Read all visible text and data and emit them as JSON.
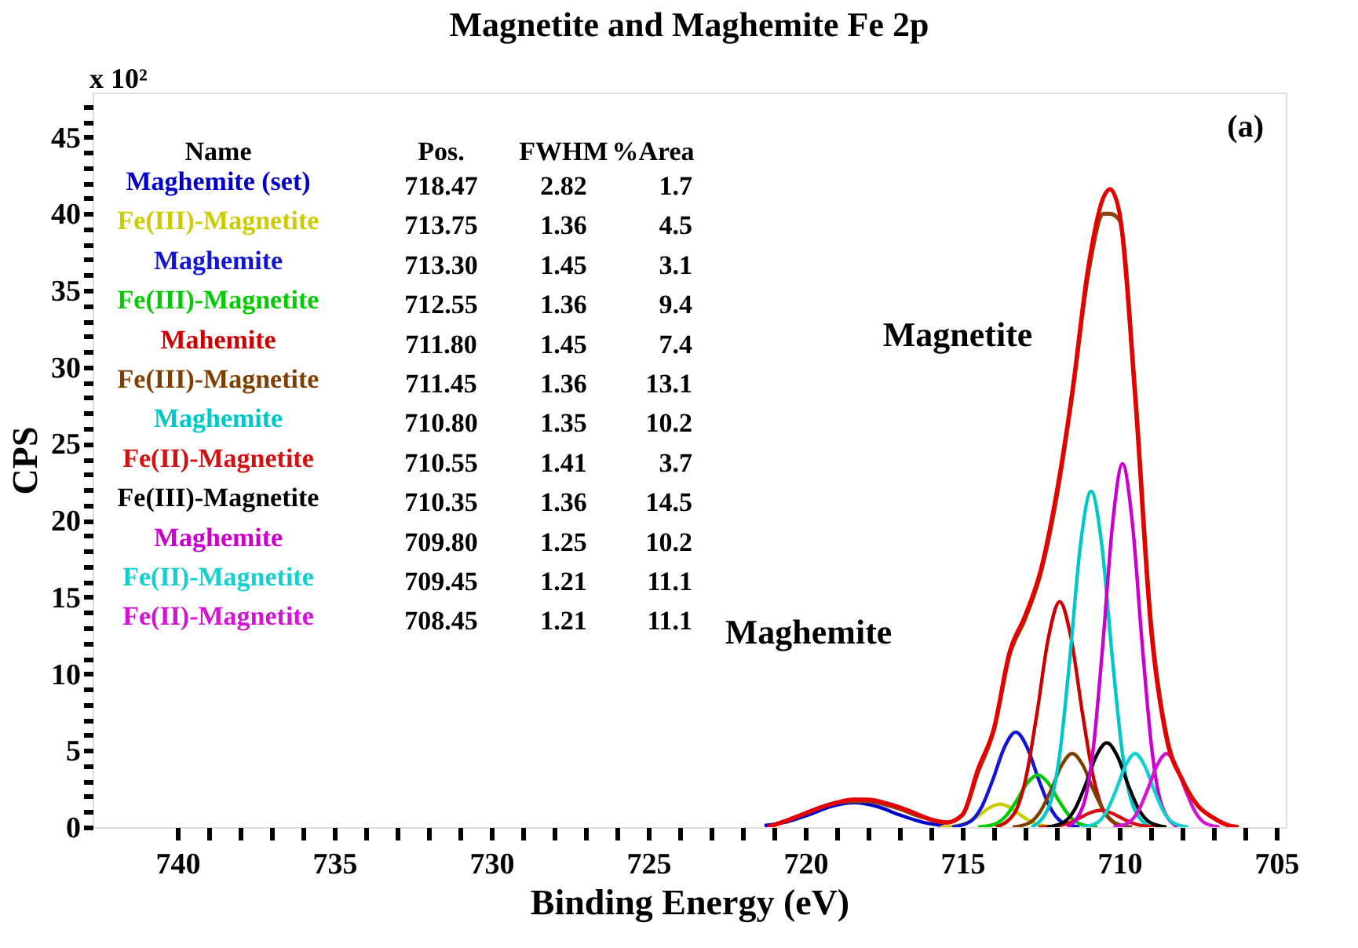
{
  "chart_data": {
    "type": "line",
    "title": "Magnetite and Maghemite  Fe 2p",
    "xlabel": "Binding Energy (eV)",
    "ylabel": "CPS",
    "xlim": [
      742.7,
      704.7
    ],
    "ylim": [
      0,
      47.9
    ],
    "xticks": [
      740,
      {
        "value": 739,
        "label": null
      },
      {
        "value": 738,
        "label": null
      },
      {
        "value": 737,
        "label": null
      },
      {
        "value": 736,
        "label": null
      },
      735,
      {
        "value": 734,
        "label": null
      },
      {
        "value": 733,
        "label": null
      },
      {
        "value": 732,
        "label": null
      },
      {
        "value": 731,
        "label": null
      },
      730,
      {
        "value": 729,
        "label": null
      },
      {
        "value": 728,
        "label": null
      },
      {
        "value": 727,
        "label": null
      },
      {
        "value": 726,
        "label": null
      },
      725,
      {
        "value": 724,
        "label": null
      },
      {
        "value": 723,
        "label": null
      },
      {
        "value": 722,
        "label": null
      },
      {
        "value": 721,
        "label": null
      },
      720,
      {
        "value": 719,
        "label": null
      },
      {
        "value": 718,
        "label": null
      },
      {
        "value": 717,
        "label": null
      },
      {
        "value": 716,
        "label": null
      },
      715,
      {
        "value": 714,
        "label": null
      },
      {
        "value": 713,
        "label": null
      },
      {
        "value": 712,
        "label": null
      },
      {
        "value": 711,
        "label": null
      },
      710,
      {
        "value": 709,
        "label": null
      },
      {
        "value": 708,
        "label": null
      },
      {
        "value": 707,
        "label": null
      },
      {
        "value": 706,
        "label": null
      },
      705
    ],
    "yticks": [
      0,
      {
        "value": 1,
        "label": null
      },
      {
        "value": 2,
        "label": null
      },
      {
        "value": 3,
        "label": null
      },
      {
        "value": 4,
        "label": null
      },
      5,
      {
        "value": 6,
        "label": null
      },
      {
        "value": 7,
        "label": null
      },
      {
        "value": 8,
        "label": null
      },
      {
        "value": 9,
        "label": null
      },
      10,
      {
        "value": 11,
        "label": null
      },
      {
        "value": 12,
        "label": null
      },
      {
        "value": 13,
        "label": null
      },
      {
        "value": 14,
        "label": null
      },
      15,
      {
        "value": 16,
        "label": null
      },
      {
        "value": 17,
        "label": null
      },
      {
        "value": 18,
        "label": null
      },
      {
        "value": 19,
        "label": null
      },
      20,
      {
        "value": 21,
        "label": null
      },
      {
        "value": 22,
        "label": null
      },
      {
        "value": 23,
        "label": null
      },
      {
        "value": 24,
        "label": null
      },
      25,
      {
        "value": 26,
        "label": null
      },
      {
        "value": 27,
        "label": null
      },
      {
        "value": 28,
        "label": null
      },
      {
        "value": 29,
        "label": null
      },
      30,
      {
        "value": 31,
        "label": null
      },
      {
        "value": 32,
        "label": null
      },
      {
        "value": 33,
        "label": null
      },
      {
        "value": 34,
        "label": null
      },
      35,
      {
        "value": 36,
        "label": null
      },
      {
        "value": 37,
        "label": null
      },
      {
        "value": 38,
        "label": null
      },
      {
        "value": 39,
        "label": null
      },
      40,
      {
        "value": 41,
        "label": null
      },
      {
        "value": 42,
        "label": null
      },
      {
        "value": 43,
        "label": null
      },
      {
        "value": 44,
        "label": null
      },
      45,
      {
        "value": 46,
        "label": null
      },
      {
        "value": 47,
        "label": null
      }
    ],
    "grid": false,
    "marker": "none",
    "line_style": "solid",
    "series": [
      {
        "name": "Maghemite (set)",
        "color": "#0000cc",
        "x": [
          721.3,
          720.6,
          719.9,
          719.2,
          718.45,
          717.7,
          717.0,
          716.3,
          715.6
        ],
        "values": [
          0.1,
          0.34,
          0.8,
          1.34,
          1.6,
          1.34,
          0.8,
          0.34,
          0.1
        ]
      },
      {
        "name": "Fe(III)-Magnetite",
        "color": "#cccc00",
        "x": [
          715.7,
          715.16,
          714.82,
          714.48,
          714.14,
          713.8,
          713.46,
          713.12,
          712.78,
          712.44,
          711.9
        ],
        "values": [
          0,
          0.09,
          0.32,
          0.75,
          1.26,
          1.5,
          1.26,
          0.75,
          0.32,
          0.09,
          0
        ]
      },
      {
        "name": "Maghemite",
        "color": "#1414d4",
        "x": [
          715.33,
          714.75,
          714.39,
          714.03,
          713.66,
          713.3,
          712.94,
          712.57,
          712.21,
          711.85,
          711.27
        ],
        "values": [
          0,
          0.37,
          1.3,
          3.1,
          5.21,
          6.2,
          5.21,
          3.1,
          1.3,
          0.37,
          0
        ]
      },
      {
        "name": "Fe(III)-Magnetite",
        "color": "#00cc00",
        "x": [
          714.5,
          713.96,
          713.62,
          713.28,
          712.94,
          712.6,
          712.26,
          711.92,
          711.58,
          711.24,
          710.7
        ],
        "values": [
          0,
          0.2,
          0.71,
          1.7,
          2.86,
          3.4,
          2.86,
          1.7,
          0.71,
          0.2,
          0
        ]
      },
      {
        "name": "Mahemite",
        "color": "#cc0000",
        "x": [
          713.93,
          713.35,
          712.99,
          712.63,
          712.26,
          711.9,
          711.54,
          711.17,
          710.81,
          710.45,
          709.87
        ],
        "values": [
          0,
          0.88,
          3.09,
          7.35,
          12.35,
          14.7,
          12.35,
          7.35,
          3.09,
          0.88,
          0
        ]
      },
      {
        "name": "Fe(III)-Magnetite",
        "color": "#7f3f00",
        "x": [
          713.4,
          712.86,
          712.52,
          712.18,
          711.84,
          711.5,
          711.16,
          710.82,
          710.48,
          710.14,
          709.6
        ],
        "values": [
          0,
          0.29,
          1.01,
          2.4,
          4.03,
          4.8,
          4.03,
          2.4,
          1.01,
          0.29,
          0
        ]
      },
      {
        "name": "Maghemite",
        "color": "#00c8c8",
        "x": [
          712.79,
          712.25,
          711.91,
          711.58,
          711.24,
          710.9,
          710.56,
          710.22,
          709.89,
          709.55,
          709.01
        ],
        "values": [
          0,
          1.31,
          4.6,
          10.95,
          18.4,
          21.9,
          18.4,
          10.95,
          4.6,
          1.31,
          0
        ]
      },
      {
        "name": "Fe(II)-Magnetite",
        "color": "#d41010",
        "x": [
          712.57,
          712.01,
          711.66,
          711.31,
          710.95,
          710.6,
          710.25,
          709.89,
          709.54,
          709.19,
          708.63
        ],
        "values": [
          0,
          0.07,
          0.23,
          0.55,
          0.92,
          1.1,
          0.92,
          0.55,
          0.23,
          0.07,
          0
        ]
      },
      {
        "name": "Fe(III)-Magnetite",
        "color": "#000000",
        "x": [
          712.3,
          711.76,
          711.42,
          711.08,
          710.74,
          710.4,
          710.06,
          709.72,
          709.38,
          709.04,
          708.5
        ],
        "values": [
          0,
          0.33,
          1.16,
          2.75,
          4.62,
          5.5,
          4.62,
          2.75,
          1.16,
          0.33,
          0
        ]
      },
      {
        "name": "Maghemite",
        "color": "#cc00cc",
        "x": [
          711.65,
          711.15,
          710.84,
          710.53,
          710.21,
          709.9,
          709.59,
          709.27,
          708.96,
          708.65,
          708.15
        ],
        "values": [
          0,
          1.42,
          4.98,
          11.85,
          19.91,
          23.7,
          19.91,
          11.85,
          4.98,
          1.42,
          0
        ]
      },
      {
        "name": "Fe(II)-Magnetite",
        "color": "#10d0d0",
        "x": [
          711.19,
          710.71,
          710.41,
          710.11,
          709.8,
          709.5,
          709.2,
          708.89,
          708.59,
          708.29,
          707.81
        ],
        "values": [
          0,
          0.29,
          1.01,
          2.4,
          4.03,
          4.8,
          4.03,
          2.4,
          1.01,
          0.29,
          0
        ]
      },
      {
        "name": "Fe(II)-Magnetite",
        "color": "#d414d4",
        "x": [
          710.19,
          709.71,
          709.41,
          709.11,
          708.8,
          708.5,
          708.2,
          707.89,
          707.59,
          707.29,
          706.81
        ],
        "values": [
          0,
          0.29,
          1.01,
          2.4,
          4.03,
          4.8,
          4.03,
          2.4,
          1.01,
          0.29,
          0
        ]
      },
      {
        "color": "#8b4513",
        "x": [
          721.2,
          720.5,
          720,
          719.5,
          719,
          718.5,
          718,
          717.5,
          717,
          716.5,
          716,
          715.5,
          715,
          714.5,
          714,
          713.5,
          713,
          712.5,
          712,
          711.5,
          711,
          710.5,
          710.3,
          710,
          709.5,
          709,
          708.5,
          708,
          707.5,
          707,
          706.5,
          706.2
        ],
        "values": [
          0,
          0.5,
          0.9,
          1.3,
          1.6,
          1.7,
          1.7,
          1.5,
          1.2,
          0.8,
          0.5,
          0.3,
          0.8,
          3.6,
          6.3,
          11.2,
          13.6,
          16.6,
          21.5,
          28.2,
          36,
          40,
          40,
          39.6,
          28.5,
          13.5,
          6,
          3.1,
          1.4,
          0.6,
          0.1,
          0
        ]
      },
      {
        "color": "#e60000",
        "x": [
          721.2,
          720.5,
          720,
          719.5,
          719,
          718.5,
          718,
          717.5,
          717,
          716.5,
          716,
          715.5,
          715,
          714.5,
          714,
          713.5,
          713,
          712.5,
          712,
          711.5,
          711,
          710.5,
          710.3,
          710,
          709.5,
          709,
          708.5,
          708,
          707.5,
          707,
          706.5,
          706.2
        ],
        "values": [
          0,
          0.5,
          0.9,
          1.3,
          1.6,
          1.8,
          1.8,
          1.6,
          1.3,
          0.9,
          0.5,
          0.3,
          0.8,
          3.8,
          6.4,
          11.4,
          13.8,
          16.8,
          21.8,
          28.4,
          36.4,
          41.1,
          41.6,
          40.1,
          28.1,
          13.1,
          5.8,
          3.1,
          1.4,
          0.6,
          0.1,
          0
        ]
      }
    ],
    "annotations": [
      "(a)",
      "x 10²",
      "Magnetite",
      "Maghemite",
      "Name",
      "Pos.",
      "FWHM",
      "%Area",
      "718.47",
      "2.82",
      "1.7",
      "713.75",
      "1.36",
      "4.5",
      "713.30",
      "1.45",
      "3.1",
      "712.55",
      "1.36",
      "9.4",
      "711.80",
      "1.45",
      "7.4",
      "711.45",
      "1.36",
      "13.1",
      "710.80",
      "1.35",
      "10.2",
      "710.55",
      "1.41",
      "3.7",
      "710.35",
      "1.36",
      "14.5",
      "709.80",
      "1.25",
      "10.2",
      "709.45",
      "1.21",
      "11.1",
      "708.45",
      "1.21",
      "11.1"
    ]
  }
}
